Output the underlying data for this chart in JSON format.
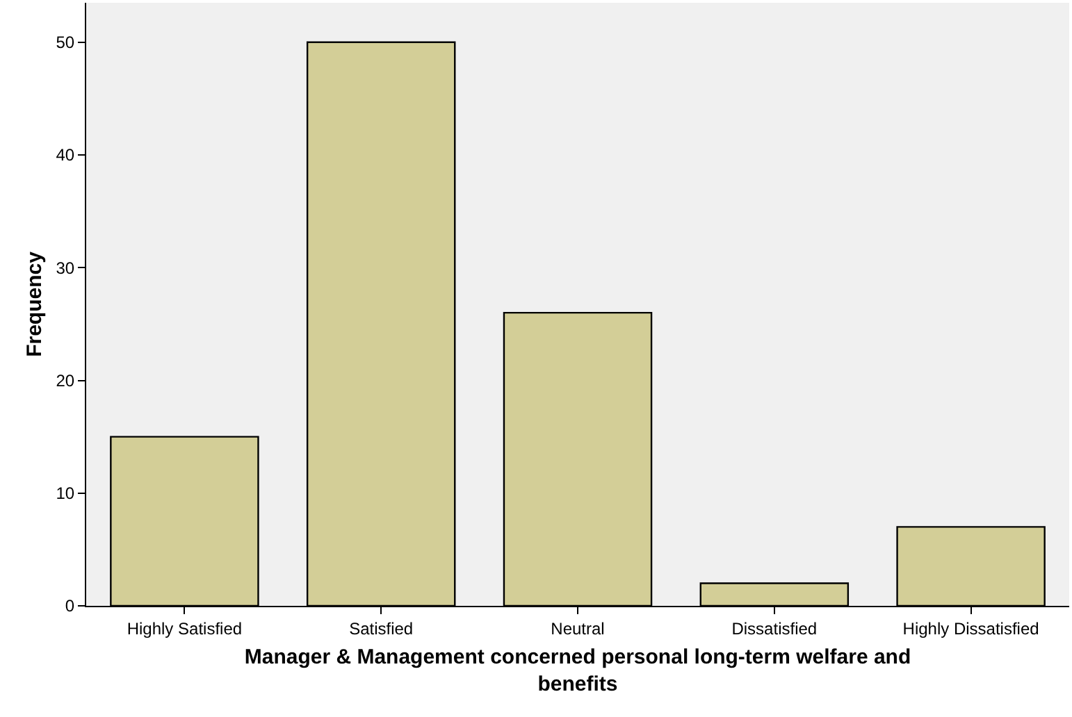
{
  "chart_data": {
    "type": "bar",
    "xlabel": "Manager & Management concerned personal long-term welfare and benefits",
    "ylabel": "Frequency",
    "categories": [
      "Highly Satisfied",
      "Satisfied",
      "Neutral",
      "Dissatisfied",
      "Highly Dissatisfied"
    ],
    "values": [
      15,
      50,
      26,
      2,
      7
    ],
    "color": "#d3ce97",
    "ylim": [
      0,
      53.5
    ],
    "yticks": [
      0,
      10,
      20,
      30,
      40,
      50
    ],
    "grid": false,
    "legend": false
  }
}
